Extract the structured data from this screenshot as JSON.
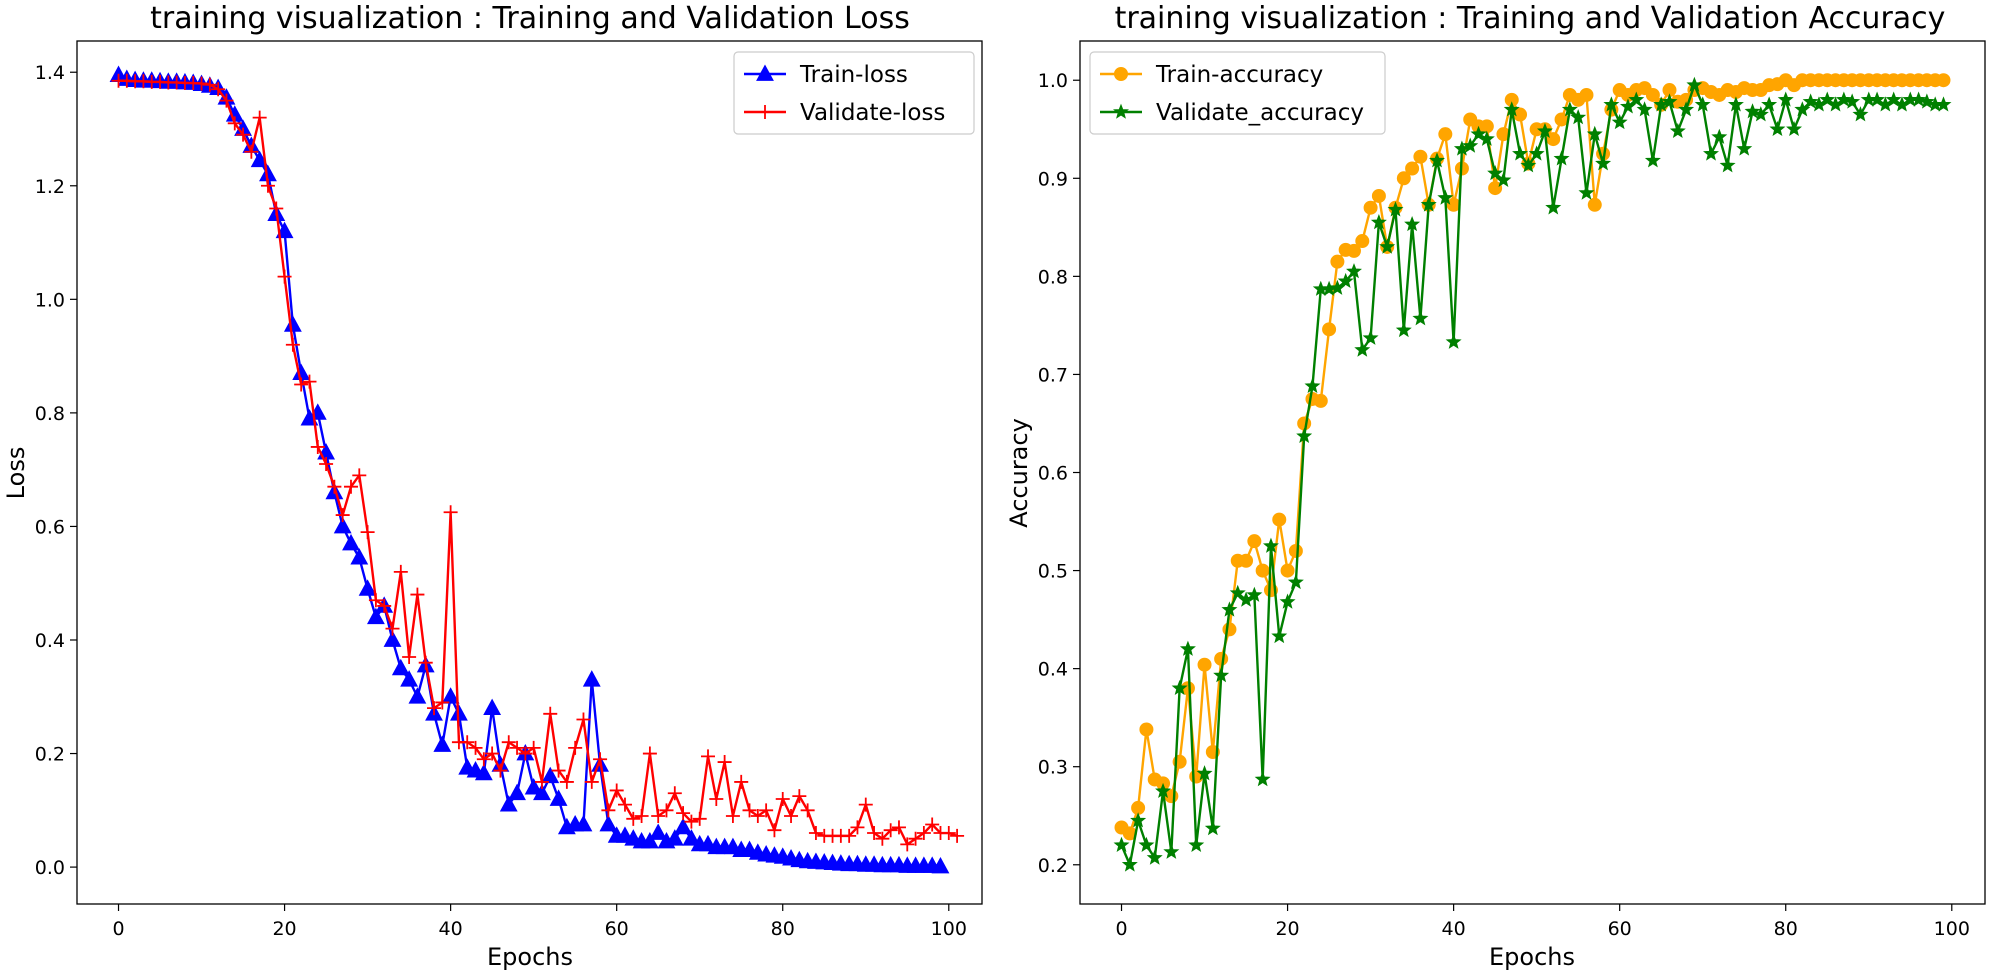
{
  "chart_data": [
    {
      "type": "line",
      "title": "training visualization : Training and Validation Loss",
      "xlabel": "Epochs",
      "ylabel": "Loss",
      "xlim": [
        -5,
        104
      ],
      "ylim": [
        -0.065,
        1.455
      ],
      "xticks": [
        0,
        20,
        40,
        60,
        80,
        100
      ],
      "yticks": [
        0.0,
        0.2,
        0.4,
        0.6,
        0.8,
        1.0,
        1.2,
        1.4
      ],
      "legend_position": "top-right",
      "series": [
        {
          "name": "Train-loss",
          "color": "#0000ff",
          "marker": "triangle",
          "values": [
            1.395,
            1.388,
            1.386,
            1.385,
            1.385,
            1.384,
            1.383,
            1.383,
            1.382,
            1.381,
            1.379,
            1.376,
            1.372,
            1.355,
            1.325,
            1.3,
            1.27,
            1.245,
            1.22,
            1.15,
            1.12,
            0.955,
            0.87,
            0.79,
            0.8,
            0.73,
            0.66,
            0.6,
            0.57,
            0.545,
            0.49,
            0.44,
            0.46,
            0.4,
            0.35,
            0.33,
            0.3,
            0.355,
            0.27,
            0.215,
            0.3,
            0.27,
            0.175,
            0.17,
            0.165,
            0.28,
            0.18,
            0.11,
            0.13,
            0.2,
            0.14,
            0.13,
            0.16,
            0.12,
            0.07,
            0.075,
            0.075,
            0.33,
            0.18,
            0.075,
            0.055,
            0.055,
            0.05,
            0.045,
            0.045,
            0.06,
            0.045,
            0.05,
            0.07,
            0.05,
            0.04,
            0.04,
            0.035,
            0.035,
            0.035,
            0.03,
            0.03,
            0.025,
            0.022,
            0.02,
            0.018,
            0.015,
            0.012,
            0.01,
            0.009,
            0.008,
            0.007,
            0.006,
            0.005,
            0.005,
            0.004,
            0.004,
            0.003,
            0.003,
            0.003,
            0.002,
            0.002,
            0.002,
            0.002,
            0.001
          ]
        },
        {
          "name": "Validate-loss",
          "color": "#ff0000",
          "marker": "plus",
          "values": [
            1.385,
            1.385,
            1.384,
            1.384,
            1.383,
            1.383,
            1.382,
            1.382,
            1.381,
            1.381,
            1.38,
            1.378,
            1.37,
            1.35,
            1.31,
            1.29,
            1.26,
            1.32,
            1.2,
            1.16,
            1.04,
            0.92,
            0.85,
            0.855,
            0.74,
            0.71,
            0.67,
            0.62,
            0.67,
            0.69,
            0.59,
            0.47,
            0.46,
            0.42,
            0.52,
            0.37,
            0.48,
            0.36,
            0.28,
            0.29,
            0.625,
            0.22,
            0.22,
            0.21,
            0.19,
            0.2,
            0.17,
            0.22,
            0.21,
            0.2,
            0.21,
            0.15,
            0.27,
            0.17,
            0.15,
            0.21,
            0.26,
            0.15,
            0.19,
            0.1,
            0.135,
            0.11,
            0.085,
            0.09,
            0.2,
            0.09,
            0.1,
            0.13,
            0.095,
            0.08,
            0.085,
            0.195,
            0.12,
            0.185,
            0.09,
            0.15,
            0.1,
            0.09,
            0.1,
            0.065,
            0.12,
            0.09,
            0.125,
            0.1,
            0.06,
            0.055,
            0.055,
            0.055,
            0.055,
            0.07,
            0.11,
            0.06,
            0.05,
            0.065,
            0.07,
            0.04,
            0.05,
            0.06,
            0.075,
            0.06,
            0.06,
            0.055
          ]
        }
      ]
    },
    {
      "type": "line",
      "title": "training visualization : Training and Validation Accuracy",
      "xlabel": "Epochs",
      "ylabel": "Accuracy",
      "xlim": [
        -5,
        104
      ],
      "ylim": [
        0.16,
        1.04
      ],
      "xticks": [
        0,
        20,
        40,
        60,
        80,
        100
      ],
      "yticks": [
        0.2,
        0.3,
        0.4,
        0.5,
        0.6,
        0.7,
        0.8,
        0.9,
        1.0
      ],
      "legend_position": "top-left",
      "series": [
        {
          "name": "Train-accuracy",
          "color": "#ffa500",
          "marker": "circle",
          "values": [
            0.238,
            0.232,
            0.258,
            0.338,
            0.287,
            0.283,
            0.27,
            0.305,
            0.38,
            0.29,
            0.404,
            0.315,
            0.41,
            0.44,
            0.51,
            0.51,
            0.53,
            0.5,
            0.48,
            0.552,
            0.5,
            0.52,
            0.65,
            0.675,
            0.673,
            0.746,
            0.815,
            0.827,
            0.826,
            0.836,
            0.87,
            0.882,
            0.83,
            0.87,
            0.9,
            0.91,
            0.922,
            0.873,
            0.92,
            0.945,
            0.873,
            0.91,
            0.96,
            0.953,
            0.953,
            0.89,
            0.945,
            0.98,
            0.965,
            0.915,
            0.95,
            0.95,
            0.94,
            0.96,
            0.985,
            0.98,
            0.985,
            0.873,
            0.925,
            0.97,
            0.99,
            0.985,
            0.99,
            0.992,
            0.985,
            0.975,
            0.99,
            0.978,
            0.98,
            0.99,
            0.992,
            0.988,
            0.985,
            0.99,
            0.988,
            0.992,
            0.99,
            0.99,
            0.995,
            0.996,
            1.0,
            0.995,
            1.0,
            1.0,
            1.0,
            1.0,
            1.0,
            1.0,
            1.0,
            1.0,
            1.0,
            1.0,
            1.0,
            1.0,
            1.0,
            1.0,
            1.0,
            1.0,
            1.0,
            1.0
          ]
        },
        {
          "name": "Validate_accuracy",
          "color": "#008000",
          "marker": "star",
          "values": [
            0.22,
            0.2,
            0.245,
            0.22,
            0.207,
            0.275,
            0.213,
            0.38,
            0.42,
            0.22,
            0.293,
            0.237,
            0.393,
            0.46,
            0.477,
            0.47,
            0.475,
            0.287,
            0.525,
            0.433,
            0.468,
            0.488,
            0.637,
            0.688,
            0.787,
            0.787,
            0.788,
            0.795,
            0.805,
            0.725,
            0.737,
            0.855,
            0.83,
            0.868,
            0.745,
            0.853,
            0.757,
            0.873,
            0.918,
            0.88,
            0.733,
            0.93,
            0.933,
            0.945,
            0.94,
            0.905,
            0.898,
            0.97,
            0.925,
            0.913,
            0.925,
            0.948,
            0.87,
            0.92,
            0.97,
            0.962,
            0.885,
            0.945,
            0.915,
            0.975,
            0.957,
            0.973,
            0.98,
            0.97,
            0.918,
            0.975,
            0.978,
            0.948,
            0.97,
            0.995,
            0.975,
            0.925,
            0.942,
            0.913,
            0.975,
            0.93,
            0.968,
            0.965,
            0.975,
            0.95,
            0.98,
            0.95,
            0.97,
            0.978,
            0.975,
            0.98,
            0.975,
            0.98,
            0.978,
            0.965,
            0.98,
            0.98,
            0.975,
            0.98,
            0.975,
            0.98,
            0.98,
            0.978,
            0.975,
            0.975
          ]
        }
      ]
    }
  ]
}
